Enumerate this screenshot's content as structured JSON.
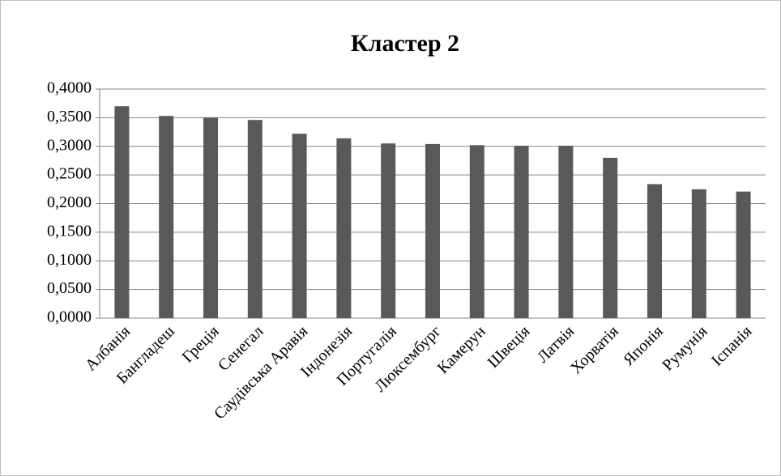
{
  "chart_data": {
    "type": "bar",
    "title": "Кластер 2",
    "categories": [
      "Албанія",
      "Бангладеш",
      "Греція",
      "Сенегал",
      "Саудівська Аравія",
      "Індонезія",
      "Португалія",
      "Люксембург",
      "Камерун",
      "Швеція",
      "Латвія",
      "Хорватія",
      "Японія",
      "Румунія",
      "Іспанія"
    ],
    "values": [
      0.37,
      0.353,
      0.35,
      0.346,
      0.322,
      0.314,
      0.305,
      0.304,
      0.302,
      0.301,
      0.301,
      0.28,
      0.234,
      0.225,
      0.221
    ],
    "color": "#595959",
    "ylim": [
      0,
      0.4
    ],
    "yticks": [
      {
        "value": 0,
        "label": "0,0000"
      },
      {
        "value": 0.05,
        "label": "0,0500"
      },
      {
        "value": 0.1,
        "label": "0,1000"
      },
      {
        "value": 0.15,
        "label": "0,1500"
      },
      {
        "value": 0.2,
        "label": "0,2000"
      },
      {
        "value": 0.25,
        "label": "0,2500"
      },
      {
        "value": 0.3,
        "label": "0,3000"
      },
      {
        "value": 0.35,
        "label": "0,3500"
      },
      {
        "value": 0.4,
        "label": "0,4000"
      }
    ],
    "grid": true
  }
}
